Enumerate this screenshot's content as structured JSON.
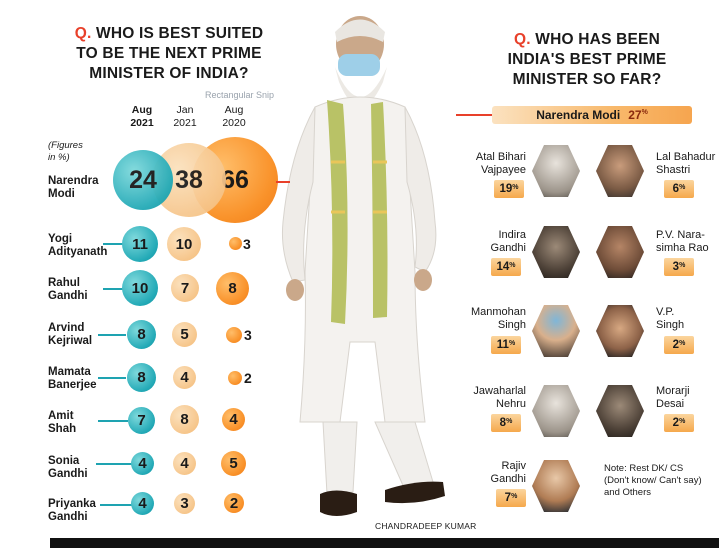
{
  "left_question": {
    "q": "Q.",
    "text": "WHO IS BEST SUITED TO BE THE NEXT PRIME MINISTER OF INDIA?"
  },
  "right_question": {
    "q": "Q.",
    "text": "WHO HAS BEEN INDIA'S BEST PRIME MINISTER SO FAR?"
  },
  "columns": [
    {
      "month": "Aug",
      "year": "2021"
    },
    {
      "month": "Jan",
      "year": "2021"
    },
    {
      "month": "Aug",
      "year": "2020"
    }
  ],
  "figures_note": {
    "line1": "(Figures",
    "line2": "in %)"
  },
  "candidates": [
    {
      "name1": "Narendra",
      "name2": "Modi",
      "values": [
        "24",
        "38",
        "66"
      ]
    },
    {
      "name1": "Yogi",
      "name2": "Adityanath",
      "values": [
        "11",
        "10",
        "3"
      ]
    },
    {
      "name1": "Rahul",
      "name2": "Gandhi",
      "values": [
        "10",
        "7",
        "8"
      ]
    },
    {
      "name1": "Arvind",
      "name2": "Kejriwal",
      "values": [
        "8",
        "5",
        "3"
      ]
    },
    {
      "name1": "Mamata",
      "name2": "Banerjee",
      "values": [
        "8",
        "4",
        "2"
      ]
    },
    {
      "name1": "Amit",
      "name2": "Shah",
      "values": [
        "7",
        "8",
        "4"
      ]
    },
    {
      "name1": "Sonia",
      "name2": "Gandhi",
      "values": [
        "4",
        "4",
        "5"
      ]
    },
    {
      "name1": "Priyanka",
      "name2": "Gandhi",
      "values": [
        "4",
        "3",
        "2"
      ]
    }
  ],
  "best_pm_top": {
    "name": "Narendra Modi",
    "pct": "27",
    "unit": "%"
  },
  "best_pm": [
    {
      "name1": "Atal Bihari",
      "name2": "Vajpayee",
      "pct": "19",
      "unit": "%"
    },
    {
      "name1": "Lal Bahadur",
      "name2": "Shastri",
      "pct": "6",
      "unit": "%"
    },
    {
      "name1": "Indira",
      "name2": "Gandhi",
      "pct": "14",
      "unit": "%"
    },
    {
      "name1": "P.V. Nara-",
      "name2": "simha Rao",
      "pct": "3",
      "unit": "%"
    },
    {
      "name1": "Manmohan",
      "name2": "Singh",
      "pct": "11",
      "unit": "%"
    },
    {
      "name1": "V.P.",
      "name2": "Singh",
      "pct": "2",
      "unit": "%"
    },
    {
      "name1": "Jawaharlal",
      "name2": "Nehru",
      "pct": "8",
      "unit": "%"
    },
    {
      "name1": "Morarji",
      "name2": "Desai",
      "pct": "2",
      "unit": "%"
    },
    {
      "name1": "Rajiv",
      "name2": "Gandhi",
      "pct": "7",
      "unit": "%"
    }
  ],
  "note": "Note: Rest DK/ CS (Don't know/ Can't say) and Others",
  "photo_credit": "CHANDRADEEP KUMAR",
  "snip_label": "Rectangular Snip",
  "colors": {
    "accent_red": "#e8402a",
    "teal": "#22a9b6",
    "tan": "#f6c488",
    "orange": "#f9922a"
  }
}
